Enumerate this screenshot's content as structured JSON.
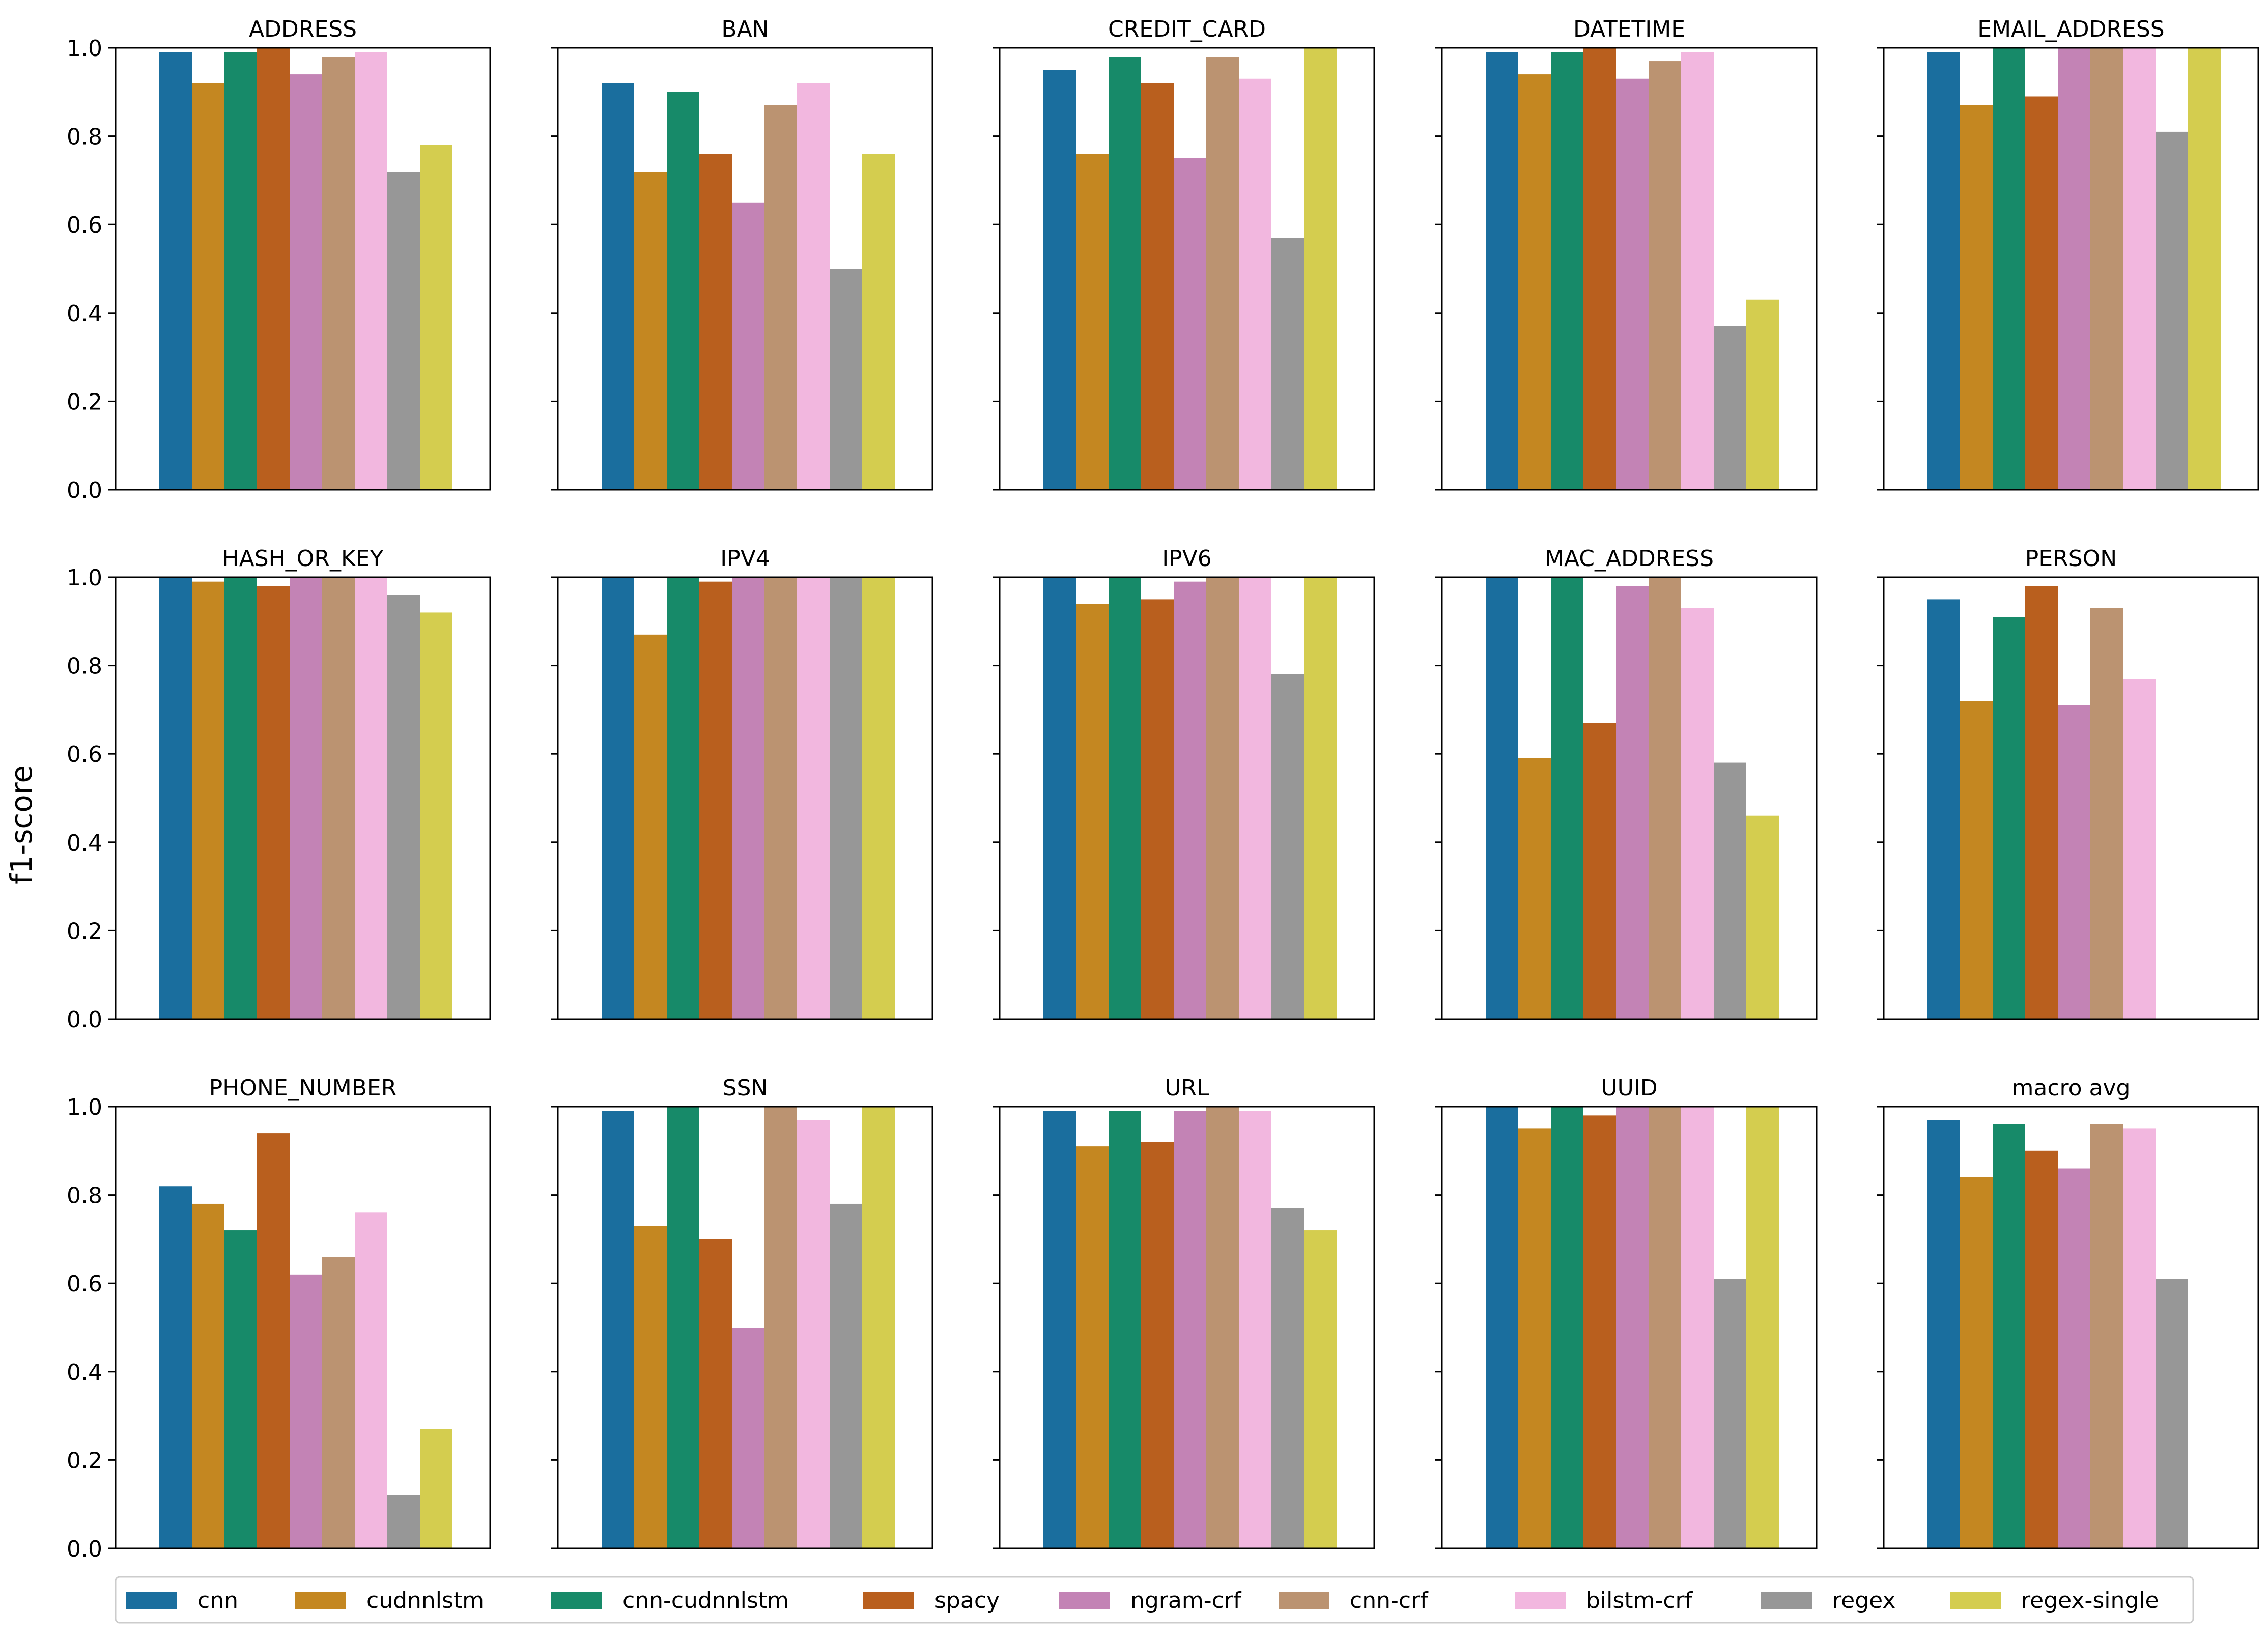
{
  "chart_data": {
    "type": "bar",
    "ylabel": "f1-score",
    "ylim": [
      0,
      1.0
    ],
    "yticks": [
      "0.0",
      "0.2",
      "0.4",
      "0.6",
      "0.8",
      "1.0"
    ],
    "grid": false,
    "sharey": true,
    "legend_position": "bottom",
    "series_names": [
      "cnn",
      "cudnnlstm",
      "cnn-cudnnlstm",
      "spacy",
      "ngram-crf",
      "cnn-crf",
      "bilstm-crf",
      "regex",
      "regex-single"
    ],
    "series_colors": [
      "#1a6e9e",
      "#c48721",
      "#178a69",
      "#b95f1e",
      "#c383b5",
      "#bb9371",
      "#f2b7df",
      "#979797",
      "#d4cd4f"
    ],
    "panels": [
      {
        "title": "ADDRESS",
        "values": [
          0.99,
          0.92,
          0.99,
          1.0,
          0.94,
          0.98,
          0.99,
          0.72,
          0.78
        ]
      },
      {
        "title": "BAN",
        "values": [
          0.92,
          0.72,
          0.9,
          0.76,
          0.65,
          0.87,
          0.92,
          0.5,
          0.76
        ]
      },
      {
        "title": "CREDIT_CARD",
        "values": [
          0.95,
          0.76,
          0.98,
          0.92,
          0.75,
          0.98,
          0.93,
          0.57,
          1.0
        ]
      },
      {
        "title": "DATETIME",
        "values": [
          0.99,
          0.94,
          0.99,
          1.0,
          0.93,
          0.97,
          0.99,
          0.37,
          0.43
        ]
      },
      {
        "title": "EMAIL_ADDRESS",
        "values": [
          0.99,
          0.87,
          1.0,
          0.89,
          1.0,
          1.0,
          1.0,
          0.81,
          1.0
        ]
      },
      {
        "title": "HASH_OR_KEY",
        "values": [
          1.0,
          0.99,
          1.0,
          0.98,
          1.0,
          1.0,
          1.0,
          0.96,
          0.92
        ]
      },
      {
        "title": "IPV4",
        "values": [
          1.0,
          0.87,
          1.0,
          0.99,
          1.0,
          1.0,
          1.0,
          1.0,
          1.0
        ]
      },
      {
        "title": "IPV6",
        "values": [
          1.0,
          0.94,
          1.0,
          0.95,
          0.99,
          1.0,
          1.0,
          0.78,
          1.0
        ]
      },
      {
        "title": "MAC_ADDRESS",
        "values": [
          1.0,
          0.59,
          1.0,
          0.67,
          0.98,
          1.0,
          0.93,
          0.58,
          0.46
        ]
      },
      {
        "title": "PERSON",
        "values": [
          0.95,
          0.72,
          0.91,
          0.98,
          0.71,
          0.93,
          0.77,
          null,
          null
        ]
      },
      {
        "title": "PHONE_NUMBER",
        "values": [
          0.82,
          0.78,
          0.72,
          0.94,
          0.62,
          0.66,
          0.76,
          0.12,
          0.27
        ]
      },
      {
        "title": "SSN",
        "values": [
          0.99,
          0.73,
          1.0,
          0.7,
          0.5,
          1.0,
          0.97,
          0.78,
          1.0
        ]
      },
      {
        "title": "URL",
        "values": [
          0.99,
          0.91,
          0.99,
          0.92,
          0.99,
          1.0,
          0.99,
          0.77,
          0.72
        ]
      },
      {
        "title": "UUID",
        "values": [
          1.0,
          0.95,
          1.0,
          0.98,
          1.0,
          1.0,
          1.0,
          0.61,
          1.0
        ]
      },
      {
        "title": "macro avg",
        "values": [
          0.97,
          0.84,
          0.96,
          0.9,
          0.86,
          0.96,
          0.95,
          0.61,
          null
        ]
      }
    ]
  }
}
